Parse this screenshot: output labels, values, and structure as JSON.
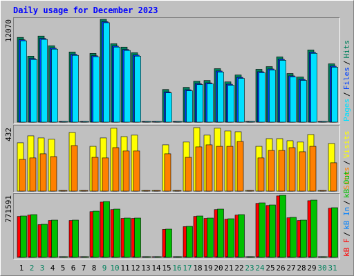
{
  "chart_data": {
    "type": "bar",
    "title": "Daily usage for December 2023",
    "separator": "/",
    "categories": [
      "1",
      "2",
      "3",
      "4",
      "5",
      "6",
      "7",
      "8",
      "9",
      "10",
      "11",
      "12",
      "13",
      "14",
      "15",
      "16",
      "17",
      "18",
      "19",
      "20",
      "21",
      "22",
      "23",
      "24",
      "25",
      "26",
      "27",
      "28",
      "29",
      "30",
      "31"
    ],
    "category_colors": [
      "#000000",
      "#00805c",
      "#00805c",
      "#000000",
      "#000000",
      "#000000",
      "#000000",
      "#000000",
      "#00805c",
      "#00805c",
      "#000000",
      "#000000",
      "#000000",
      "#000000",
      "#000000",
      "#00805c",
      "#00805c",
      "#000000",
      "#000000",
      "#000000",
      "#000000",
      "#000000",
      "#00805c",
      "#00805c",
      "#000000",
      "#000000",
      "#000000",
      "#000000",
      "#000000",
      "#00805c",
      "#00805c"
    ],
    "panels": [
      {
        "ylim": [
          0,
          12070
        ],
        "yticks": [
          12070
        ],
        "draw_order": "reverse",
        "series": [
          {
            "name": "Pages",
            "color": "#00e0ff",
            "values": [
              9550,
              7350,
              9710,
              8570,
              0,
              7840,
              0,
              7670,
              11670,
              8810,
              8410,
              7750,
              0,
              0,
              3430,
              0,
              3680,
              4410,
              4490,
              5880,
              4330,
              5140,
              0,
              5800,
              6120,
              7260,
              5310,
              4900,
              8080,
              0,
              6450
            ]
          },
          {
            "name": "Files",
            "color": "#0040ff",
            "values": [
              9670,
              7470,
              9830,
              8690,
              0,
              7960,
              0,
              7790,
              11790,
              8930,
              8530,
              7870,
              0,
              0,
              3550,
              0,
              3800,
              4530,
              4610,
              6000,
              4450,
              5260,
              0,
              5920,
              6240,
              7380,
              5430,
              5020,
              8200,
              0,
              6570
            ]
          },
          {
            "name": "Hits",
            "color": "#00805c",
            "values": [
              9950,
              7750,
              10110,
              8970,
              0,
              8240,
              0,
              8070,
              12070,
              9210,
              8810,
              8150,
              0,
              0,
              3830,
              0,
              4080,
              4810,
              4890,
              6280,
              4730,
              5540,
              0,
              6200,
              6520,
              7660,
              5710,
              5300,
              8480,
              0,
              6850
            ]
          }
        ]
      },
      {
        "ylim": [
          0,
          432
        ],
        "yticks": [
          432
        ],
        "draw_order": "reverse",
        "series": [
          {
            "name": "Sites",
            "color": "#ff8000",
            "values": [
              216,
              226,
              254,
              235,
              0,
              310,
              0,
              230,
              226,
              296,
              273,
              273,
              0,
              0,
              254,
              0,
              230,
              301,
              315,
              305,
              305,
              338,
              0,
              226,
              277,
              277,
              296,
              268,
              305,
              0,
              193
            ]
          },
          {
            "name": "Visits",
            "color": "#ffff00",
            "values": [
              329,
              376,
              362,
              353,
              0,
              399,
              0,
              305,
              362,
              428,
              371,
              381,
              0,
              0,
              315,
              0,
              334,
              432,
              381,
              428,
              409,
              404,
              0,
              305,
              357,
              357,
              343,
              334,
              385,
              0,
              324
            ]
          }
        ]
      },
      {
        "ylim": [
          0,
          771591
        ],
        "yticks": [
          771591
        ],
        "draw_order": "forward",
        "series": [
          {
            "name": "kB F",
            "color": "#ff0000",
            "values": [
              509000,
              526000,
              407000,
              458000,
              0,
              458000,
              0,
              568000,
              687000,
              594000,
              484000,
              484000,
              0,
              0,
              348000,
              0,
              382000,
              509000,
              484000,
              594000,
              475000,
              526000,
              0,
              671000,
              645000,
              764000,
              492000,
              458000,
              704000,
              0,
              611000
            ]
          },
          {
            "name": "kB In",
            "color": "#0080ff",
            "values": [
              0,
              0,
              0,
              0,
              0,
              0,
              0,
              0,
              0,
              0,
              0,
              0,
              0,
              0,
              0,
              0,
              0,
              0,
              0,
              0,
              0,
              0,
              0,
              0,
              0,
              0,
              0,
              0,
              0,
              0,
              0
            ]
          },
          {
            "name": "kB Out",
            "color": "#00c000",
            "values": [
              514400,
              531500,
              411500,
              463000,
              0,
              463000,
              0,
              574400,
              694400,
              600100,
              488700,
              488700,
              0,
              0,
              351500,
              0,
              385800,
              514400,
              488700,
              600100,
              480100,
              531500,
              0,
              677300,
              651500,
              771591,
              497200,
              463000,
              711600,
              0,
              617300
            ]
          }
        ]
      }
    ]
  }
}
